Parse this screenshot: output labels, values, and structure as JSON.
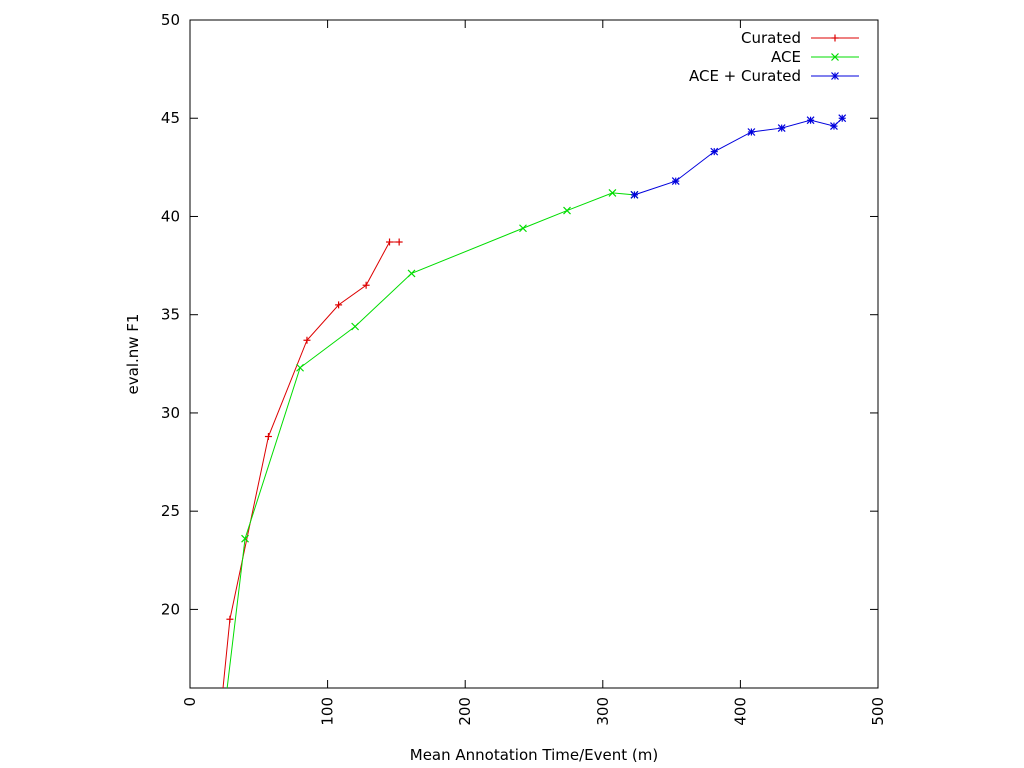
{
  "chart_data": {
    "type": "line",
    "title": "",
    "xlabel": "Mean Annotation Time/Event (m)",
    "ylabel": "eval.nw F1",
    "xlim": [
      0,
      500
    ],
    "ylim": [
      16,
      50
    ],
    "x_ticks": [
      0,
      100,
      200,
      300,
      400,
      500
    ],
    "y_ticks": [
      20,
      25,
      30,
      35,
      40,
      45,
      50
    ],
    "grid": false,
    "legend": "top-right",
    "series": [
      {
        "name": "Curated",
        "color": "#dd0000",
        "marker": "plus",
        "points": [
          [
            24,
            16.0
          ],
          [
            29,
            19.5
          ],
          [
            57,
            28.8
          ],
          [
            85,
            33.7
          ],
          [
            108,
            35.5
          ],
          [
            128,
            36.5
          ],
          [
            145,
            38.7
          ],
          [
            152,
            38.7
          ]
        ]
      },
      {
        "name": "ACE",
        "color": "#00dd00",
        "marker": "x",
        "points": [
          [
            27,
            16.0
          ],
          [
            40,
            23.6
          ],
          [
            80,
            32.3
          ],
          [
            120,
            34.4
          ],
          [
            161,
            37.1
          ],
          [
            242,
            39.4
          ],
          [
            274,
            40.3
          ],
          [
            307,
            41.2
          ],
          [
            323,
            41.1
          ]
        ]
      },
      {
        "name": "ACE + Curated",
        "color": "#0000dd",
        "marker": "star",
        "points": [
          [
            323,
            41.1
          ],
          [
            353,
            41.8
          ],
          [
            381,
            43.3
          ],
          [
            408,
            44.3
          ],
          [
            430,
            44.5
          ],
          [
            451,
            44.9
          ],
          [
            468,
            44.6
          ],
          [
            474,
            45.0
          ]
        ]
      }
    ]
  }
}
